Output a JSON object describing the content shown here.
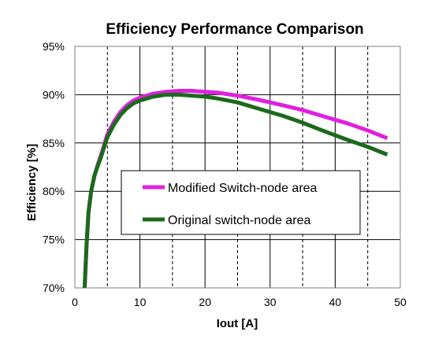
{
  "chart_data": {
    "type": "line",
    "title": "Efficiency Performance Comparison",
    "xlabel": "Iout [A]",
    "ylabel": "Efficiency [%]",
    "xlim": [
      0,
      50
    ],
    "ylim": [
      70,
      95
    ],
    "x_ticks": [
      "0",
      "10",
      "20",
      "30",
      "40",
      "50"
    ],
    "y_ticks": [
      "70%",
      "75%",
      "80%",
      "85%",
      "90%",
      "95%"
    ],
    "x_tick_values": [
      0,
      10,
      20,
      30,
      40,
      50
    ],
    "y_tick_values": [
      70,
      75,
      80,
      85,
      90,
      95
    ],
    "grid": {
      "horizontal_solid_every": 5,
      "vertical_solid_every": 10,
      "vertical_dashed_at": [
        5,
        15,
        25,
        35,
        45
      ]
    },
    "legend_position": "center",
    "series": [
      {
        "name": "Modified Switch-node area",
        "color": "#E020E0",
        "points": [
          [
            1.5,
            70.0
          ],
          [
            1.8,
            74.5
          ],
          [
            2.1,
            77.8
          ],
          [
            2.5,
            80.0
          ],
          [
            3.0,
            81.6
          ],
          [
            3.5,
            82.7
          ],
          [
            4.0,
            83.7
          ],
          [
            4.5,
            84.8
          ],
          [
            5.0,
            85.9
          ],
          [
            6.0,
            87.2
          ],
          [
            7.0,
            88.2
          ],
          [
            8.0,
            88.9
          ],
          [
            9.0,
            89.4
          ],
          [
            10.0,
            89.7
          ],
          [
            12.0,
            90.1
          ],
          [
            14.0,
            90.3
          ],
          [
            16.0,
            90.4
          ],
          [
            18.0,
            90.4
          ],
          [
            20.0,
            90.3
          ],
          [
            22.0,
            90.2
          ],
          [
            25.0,
            89.9
          ],
          [
            28.0,
            89.5
          ],
          [
            30.0,
            89.2
          ],
          [
            32.0,
            88.9
          ],
          [
            35.0,
            88.4
          ],
          [
            38.0,
            87.8
          ],
          [
            40.0,
            87.4
          ],
          [
            42.0,
            87.0
          ],
          [
            45.0,
            86.3
          ],
          [
            48.0,
            85.5
          ]
        ]
      },
      {
        "name": "Original switch-node area",
        "color": "#1B6A1B",
        "points": [
          [
            1.5,
            70.0
          ],
          [
            1.8,
            74.5
          ],
          [
            2.1,
            77.8
          ],
          [
            2.5,
            80.0
          ],
          [
            3.0,
            81.6
          ],
          [
            3.5,
            82.6
          ],
          [
            4.0,
            83.5
          ],
          [
            4.5,
            84.6
          ],
          [
            5.0,
            85.6
          ],
          [
            6.0,
            86.9
          ],
          [
            7.0,
            87.9
          ],
          [
            8.0,
            88.6
          ],
          [
            9.0,
            89.1
          ],
          [
            10.0,
            89.4
          ],
          [
            12.0,
            89.8
          ],
          [
            14.0,
            90.0
          ],
          [
            16.0,
            90.0
          ],
          [
            18.0,
            89.9
          ],
          [
            20.0,
            89.8
          ],
          [
            22.0,
            89.6
          ],
          [
            25.0,
            89.2
          ],
          [
            28.0,
            88.6
          ],
          [
            30.0,
            88.2
          ],
          [
            32.0,
            87.8
          ],
          [
            35.0,
            87.1
          ],
          [
            38.0,
            86.3
          ],
          [
            40.0,
            85.8
          ],
          [
            42.0,
            85.3
          ],
          [
            45.0,
            84.6
          ],
          [
            48.0,
            83.8
          ]
        ]
      }
    ]
  }
}
